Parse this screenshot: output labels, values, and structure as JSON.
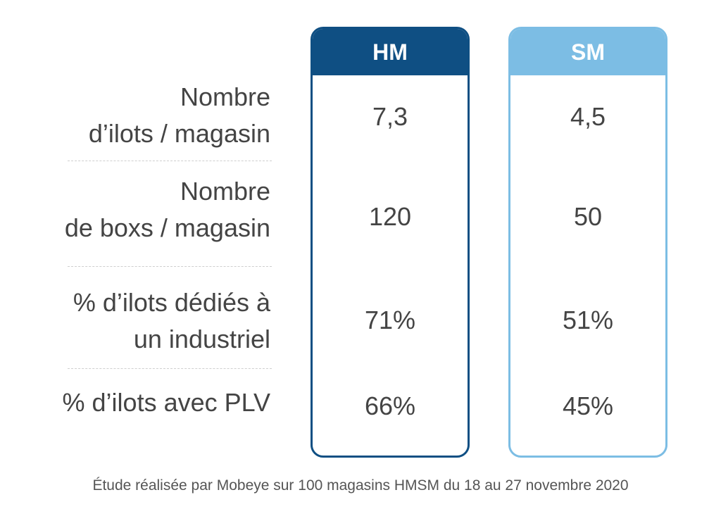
{
  "columns": [
    {
      "label": "HM",
      "color": "#0f4f83",
      "values": [
        "7,3",
        "120",
        "71%",
        "66%"
      ]
    },
    {
      "label": "SM",
      "color": "#7cbde4",
      "values": [
        "4,5",
        "50",
        "51%",
        "45%"
      ]
    }
  ],
  "rows": [
    {
      "line1": "Nombre",
      "line2": "d’ilots / magasin"
    },
    {
      "line1": "Nombre",
      "line2": "de boxs / magasin"
    },
    {
      "line1": "% d’ilots dédiés à",
      "line2": "un industriel"
    },
    {
      "line1": "% d’ilots avec PLV",
      "line2": ""
    }
  ],
  "footnote": "Étude réalisée par Mobeye sur 100 magasins HMSM du 18 au 27 novembre 2020"
}
